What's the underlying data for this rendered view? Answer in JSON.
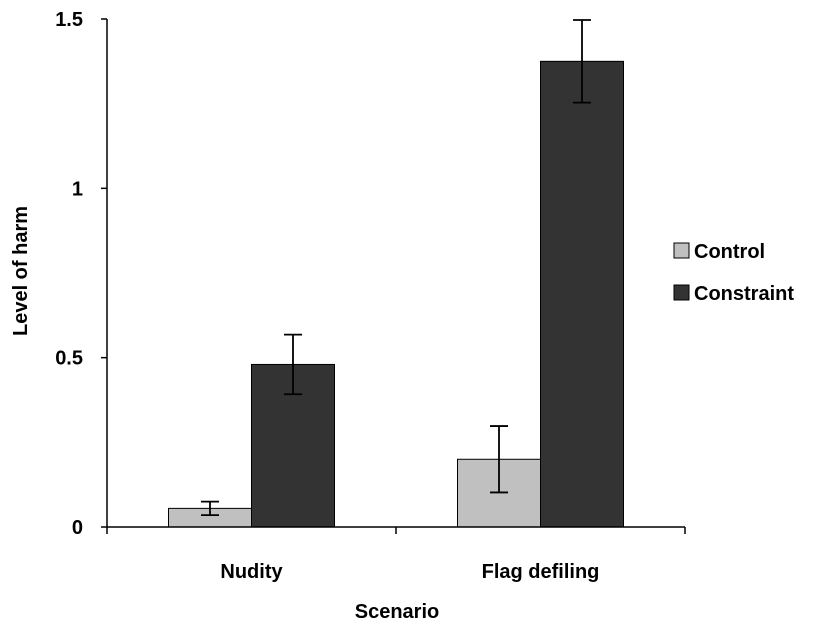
{
  "chart_data": {
    "type": "bar",
    "categories": [
      "Nudity",
      "Flag defiling"
    ],
    "series": [
      {
        "name": "Control",
        "values": [
          0.055,
          0.2
        ],
        "error": [
          0.02,
          0.098
        ],
        "color": "#c0c0c0"
      },
      {
        "name": "Constraint",
        "values": [
          0.48,
          1.375
        ],
        "error": [
          0.088,
          0.122
        ],
        "color": "#333333"
      }
    ],
    "xlabel": "Scenario",
    "ylabel": "Level of harm",
    "ylim": [
      0,
      1.5
    ],
    "yticks": [
      "0",
      "0.5",
      "1",
      "1.5"
    ],
    "grid": false,
    "legend_position": "right"
  }
}
